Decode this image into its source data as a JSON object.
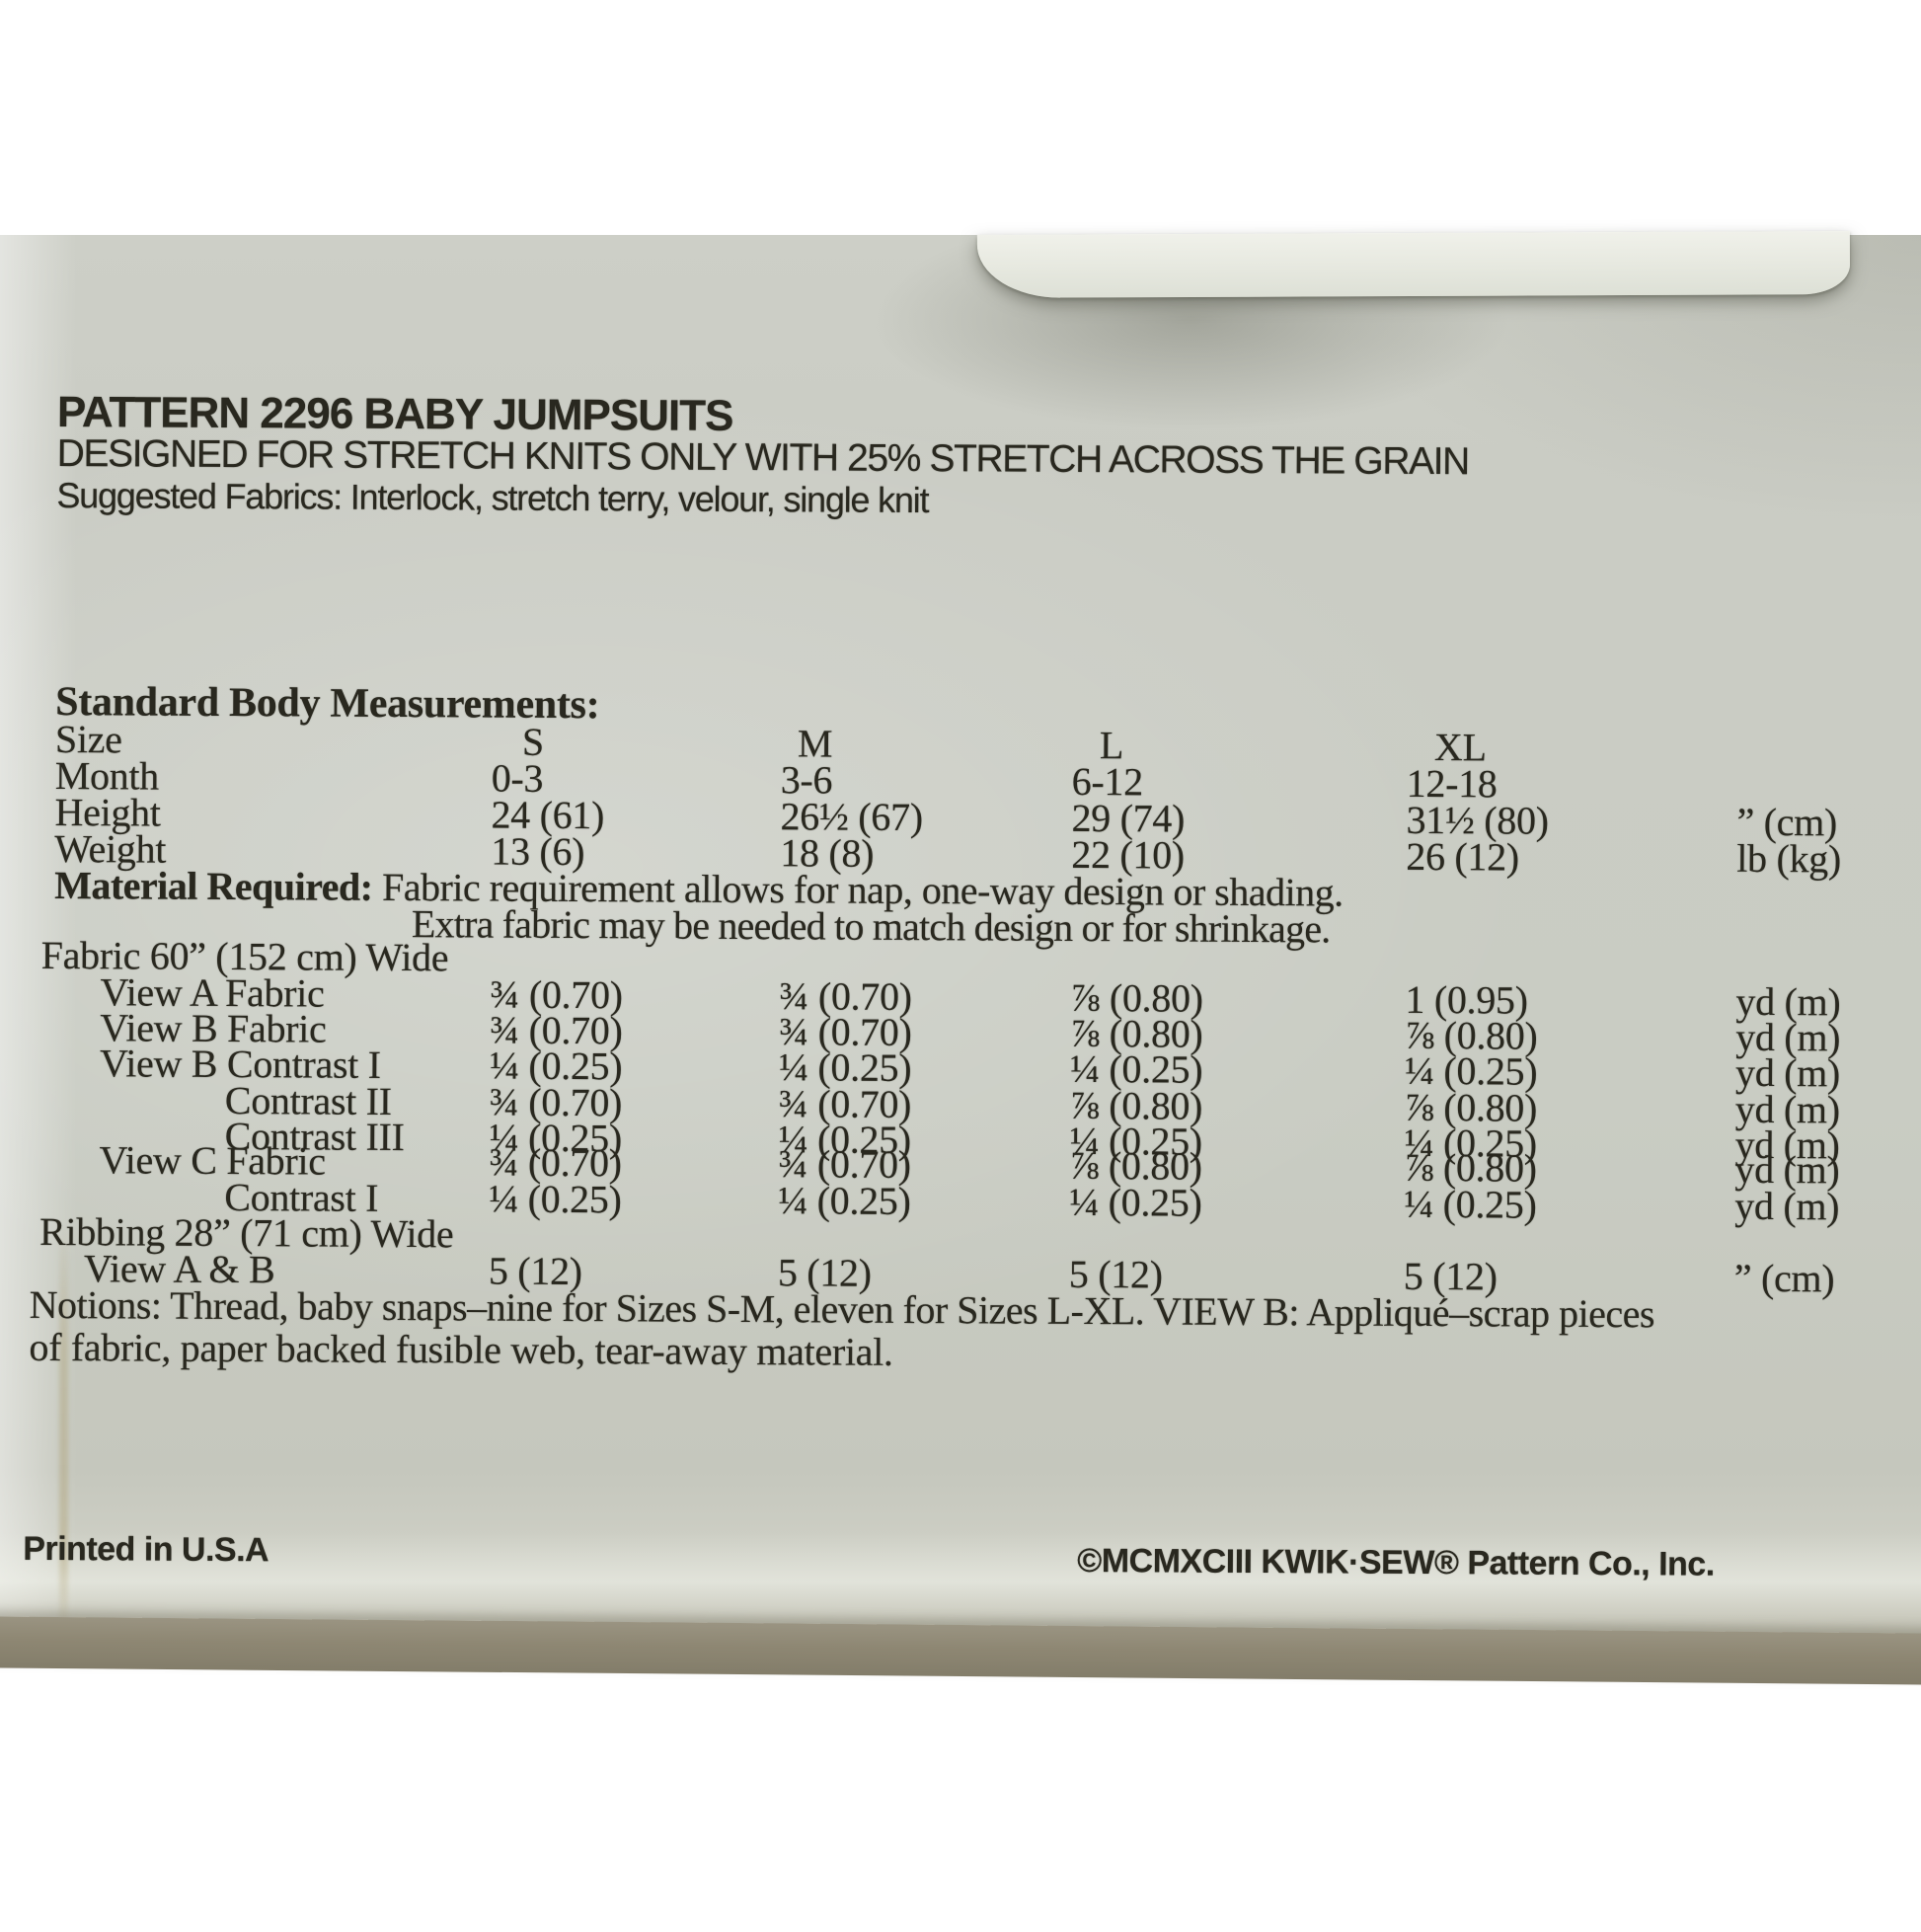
{
  "colors": {
    "backdrop": "#ffffff",
    "paper": "#c9ccc3",
    "flap": "#dde0d6",
    "desk": "#8e8773",
    "ink": "#29281f"
  },
  "header": {
    "title": "PATTERN 2296  BABY JUMPSUITS",
    "stretch_note": "DESIGNED FOR STRETCH KNITS ONLY WITH 25% STRETCH ACROSS THE GRAIN",
    "suggested_fabrics": "Suggested Fabrics: Interlock, stretch terry, velour, single knit"
  },
  "measurements": {
    "heading": "Standard Body Measurements:",
    "size_row": {
      "label": "Size",
      "s": "S",
      "m": "M",
      "l": "L",
      "xl": "XL"
    },
    "rows": [
      {
        "label": "Month",
        "s": "0-3",
        "m": "3-6",
        "l": "6-12",
        "xl": "12-18",
        "unit": ""
      },
      {
        "label": "Height",
        "s": "24 (61)",
        "m": "26½ (67)",
        "l": "29 (74)",
        "xl": "31½ (80)",
        "unit": "” (cm)"
      },
      {
        "label": "Weight",
        "s": "13 (6)",
        "m": "18 (8)",
        "l": "22 (10)",
        "xl": "26 (12)",
        "unit": "lb (kg)"
      }
    ]
  },
  "material": {
    "heading": "Material Required:",
    "note_line1": "Fabric requirement allows for nap, one-way design or shading.",
    "note_line2": "Extra fabric may be needed to match design or for shrinkage.",
    "fabric_width_heading": "Fabric 60” (152 cm) Wide",
    "fabric_rows": [
      {
        "label": "View A Fabric",
        "s": "¾ (0.70)",
        "m": "¾ (0.70)",
        "l": "⅞ (0.80)",
        "xl": "1 (0.95)",
        "unit": "yd (m)"
      },
      {
        "label": "View B Fabric",
        "s": "¾ (0.70)",
        "m": "¾ (0.70)",
        "l": "⅞ (0.80)",
        "xl": "⅞ (0.80)",
        "unit": "yd (m)"
      },
      {
        "label": "View B Contrast I",
        "s": "¼ (0.25)",
        "m": "¼ (0.25)",
        "l": "¼ (0.25)",
        "xl": "¼ (0.25)",
        "unit": "yd (m)"
      },
      {
        "label": "Contrast II",
        "s": "¾ (0.70)",
        "m": "¾ (0.70)",
        "l": "⅞ (0.80)",
        "xl": "⅞ (0.80)",
        "unit": "yd (m)"
      },
      {
        "label": "Contrast III",
        "s": "¼ (0.25)",
        "m": "¼ (0.25)",
        "l": "¼ (0.25)",
        "xl": "¼ (0.25)",
        "unit": "yd (m)"
      },
      {
        "label": "View C Fabric",
        "s": "¾ (0.70)",
        "m": "¾ (0.70)",
        "l": "⅞ (0.80)",
        "xl": "⅞ (0.80)",
        "unit": "yd (m)"
      },
      {
        "label": "Contrast I",
        "s": "¼ (0.25)",
        "m": "¼ (0.25)",
        "l": "¼ (0.25)",
        "xl": "¼ (0.25)",
        "unit": "yd (m)"
      }
    ],
    "ribbing_width_heading": "Ribbing 28” (71 cm) Wide",
    "ribbing_rows": [
      {
        "label": "View A & B",
        "s": "5 (12)",
        "m": "5 (12)",
        "l": "5 (12)",
        "xl": "5 (12)",
        "unit": "” (cm)"
      }
    ],
    "notions_line1": "Notions: Thread, baby snaps–nine for Sizes S-M, eleven for Sizes L-XL. VIEW B: Appliqué–scrap pieces",
    "notions_line2": "of fabric, paper backed fusible web, tear-away material."
  },
  "footer": {
    "printed": "Printed in U.S.A",
    "copyright": "©MCMXCIII KWIK·SEW® Pattern Co., Inc."
  }
}
